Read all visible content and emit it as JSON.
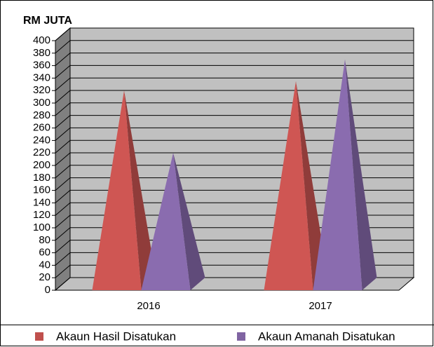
{
  "chart_data": {
    "type": "bar3d-pyramid",
    "y_label": "RM JUTA",
    "categories": [
      "2016",
      "2017"
    ],
    "series": [
      {
        "name": "Akaun Hasil Disatukan",
        "color": "#c0504d",
        "values": [
          310,
          325
        ]
      },
      {
        "name": "Akaun Amanah Disatukan",
        "color": "#8064a2",
        "values": [
          210,
          360
        ]
      }
    ],
    "ylim": [
      0,
      400
    ],
    "yticks": [
      0,
      20,
      40,
      60,
      80,
      100,
      120,
      140,
      160,
      180,
      200,
      220,
      240,
      260,
      280,
      300,
      320,
      340,
      360,
      380,
      400
    ],
    "grid": true,
    "legend": "bottom"
  }
}
